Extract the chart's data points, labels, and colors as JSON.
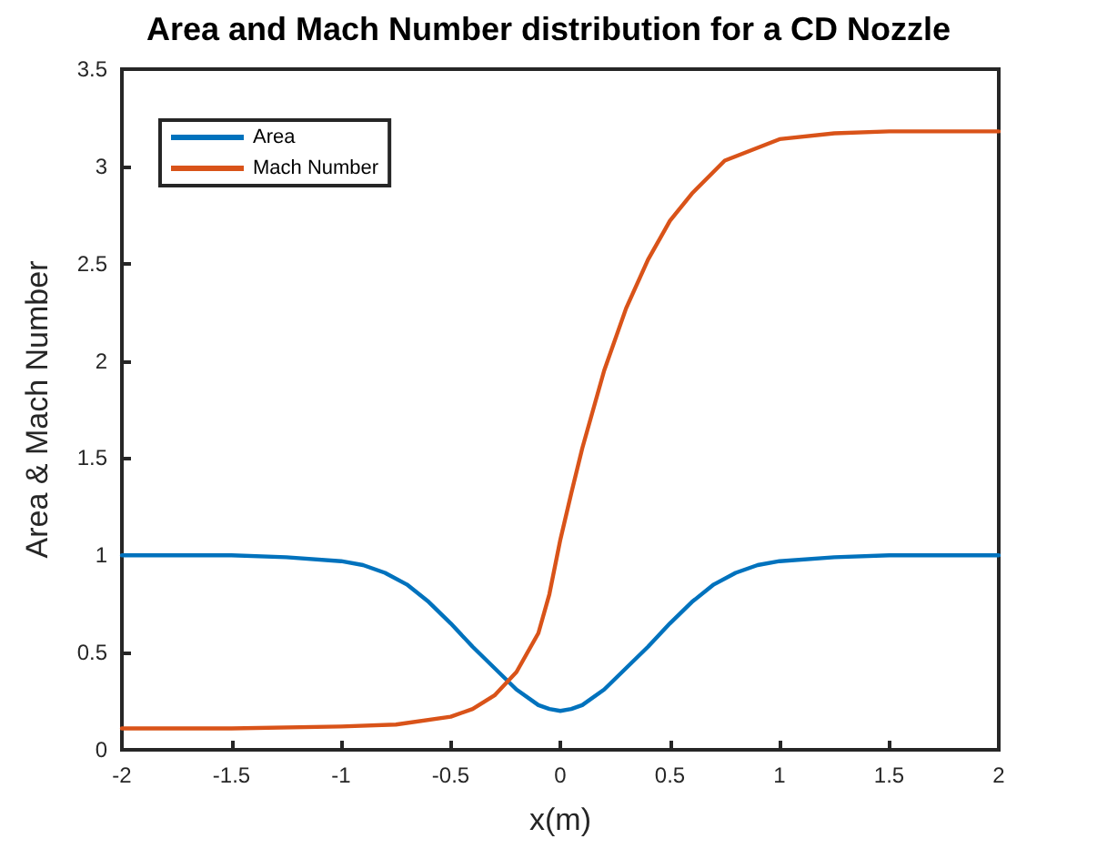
{
  "chart_data": {
    "type": "line",
    "title": "Area and Mach Number distribution for a CD Nozzle",
    "xlabel": "x(m)",
    "ylabel": "Area & Mach Number",
    "xlim": [
      -2,
      2
    ],
    "xticks": [
      -2,
      -1.5,
      -1,
      -0.5,
      0,
      0.5,
      1,
      1.5,
      2
    ],
    "ylim": [
      0,
      3.5
    ],
    "yticks": [
      0,
      0.5,
      1,
      1.5,
      2,
      2.5,
      3,
      3.5
    ],
    "grid": false,
    "legend": "top left",
    "marker": "none",
    "line_style": "solid",
    "series": [
      {
        "name": "Area",
        "color": "#0072bd",
        "x": [
          -2,
          -1.5,
          -1.25,
          -1,
          -0.9,
          -0.8,
          -0.7,
          -0.6,
          -0.5,
          -0.4,
          -0.3,
          -0.2,
          -0.1,
          -0.05,
          0,
          0.05,
          0.1,
          0.2,
          0.3,
          0.4,
          0.5,
          0.6,
          0.7,
          0.8,
          0.9,
          1,
          1.25,
          1.5,
          2
        ],
        "values": [
          1,
          1,
          0.99,
          0.97,
          0.95,
          0.91,
          0.85,
          0.76,
          0.65,
          0.53,
          0.42,
          0.31,
          0.23,
          0.21,
          0.2,
          0.21,
          0.23,
          0.31,
          0.42,
          0.53,
          0.65,
          0.76,
          0.85,
          0.91,
          0.95,
          0.97,
          0.99,
          1,
          1
        ]
      },
      {
        "name": "Mach Number",
        "color": "#d95319",
        "x": [
          -2,
          -1.5,
          -1,
          -0.75,
          -0.5,
          -0.4,
          -0.3,
          -0.2,
          -0.1,
          -0.05,
          0,
          0.05,
          0.1,
          0.2,
          0.3,
          0.4,
          0.5,
          0.6,
          0.75,
          1,
          1.25,
          1.5,
          2
        ],
        "values": [
          0.11,
          0.11,
          0.12,
          0.13,
          0.17,
          0.21,
          0.28,
          0.4,
          0.6,
          0.8,
          1.08,
          1.32,
          1.55,
          1.95,
          2.27,
          2.52,
          2.72,
          2.86,
          3.03,
          3.14,
          3.17,
          3.18,
          3.18
        ]
      }
    ]
  }
}
